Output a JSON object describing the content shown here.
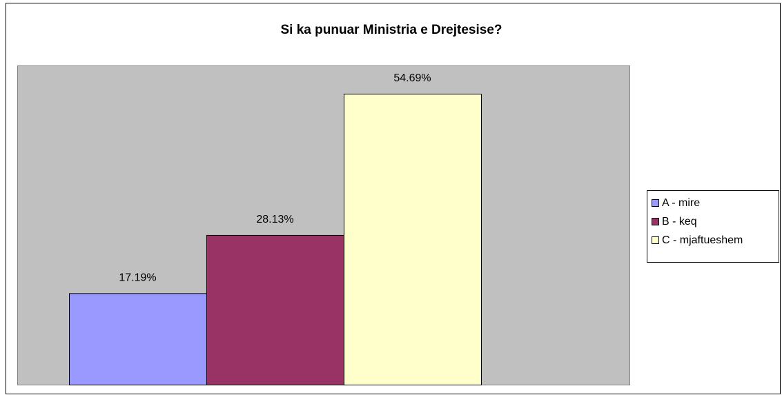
{
  "chart_data": {
    "type": "bar",
    "title": "Si ka punuar Ministria e Drejtesise?",
    "categories": [
      null
    ],
    "series": [
      {
        "name": "A - mire",
        "color": "#9999ff",
        "values": [
          17.19
        ],
        "value_labels": [
          "17.19%"
        ]
      },
      {
        "name": "B - keq",
        "color": "#993366",
        "values": [
          28.13
        ],
        "value_labels": [
          "28.13%"
        ]
      },
      {
        "name": "C - mjaftueshem",
        "color": "#ffffcc",
        "values": [
          54.69
        ],
        "value_labels": [
          "54.69%"
        ]
      }
    ],
    "ylim": [
      0,
      60
    ],
    "plot_background": "#c0c0c0",
    "legend": "right"
  }
}
